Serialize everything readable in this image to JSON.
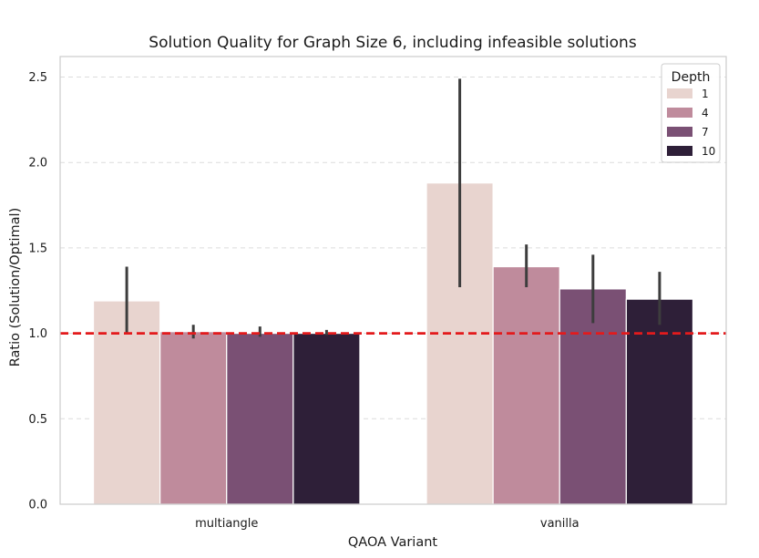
{
  "chart_data": {
    "type": "bar",
    "title": "Solution Quality for Graph Size 6, including infeasible solutions",
    "xlabel": "QAOA Variant",
    "ylabel": "Ratio (Solution/Optimal)",
    "categories": [
      "multiangle",
      "vanilla"
    ],
    "ylim": [
      0,
      2.62
    ],
    "yticks": [
      "0.0",
      "0.5",
      "1.0",
      "1.5",
      "2.0",
      "2.5"
    ],
    "grid": "horizontal dashed",
    "reference_line": {
      "y": 1.0,
      "color": "#e31a1c",
      "style": "dashed"
    },
    "legend": {
      "title": "Depth",
      "placement": "top-right"
    },
    "series": [
      {
        "name": "1",
        "color": "#e8d4cf",
        "values": [
          1.19,
          1.88
        ],
        "ci": [
          [
            1.0,
            1.39
          ],
          [
            1.27,
            2.49
          ]
        ]
      },
      {
        "name": "4",
        "color": "#bf8b9c",
        "values": [
          1.01,
          1.39
        ],
        "ci": [
          [
            0.97,
            1.05
          ],
          [
            1.27,
            1.52
          ]
        ]
      },
      {
        "name": "7",
        "color": "#7a5074",
        "values": [
          1.0,
          1.26
        ],
        "ci": [
          [
            0.98,
            1.04
          ],
          [
            1.06,
            1.46
          ]
        ]
      },
      {
        "name": "10",
        "color": "#2e1f38",
        "values": [
          1.0,
          1.2
        ],
        "ci": [
          [
            0.99,
            1.02
          ],
          [
            1.05,
            1.36
          ]
        ]
      }
    ]
  }
}
